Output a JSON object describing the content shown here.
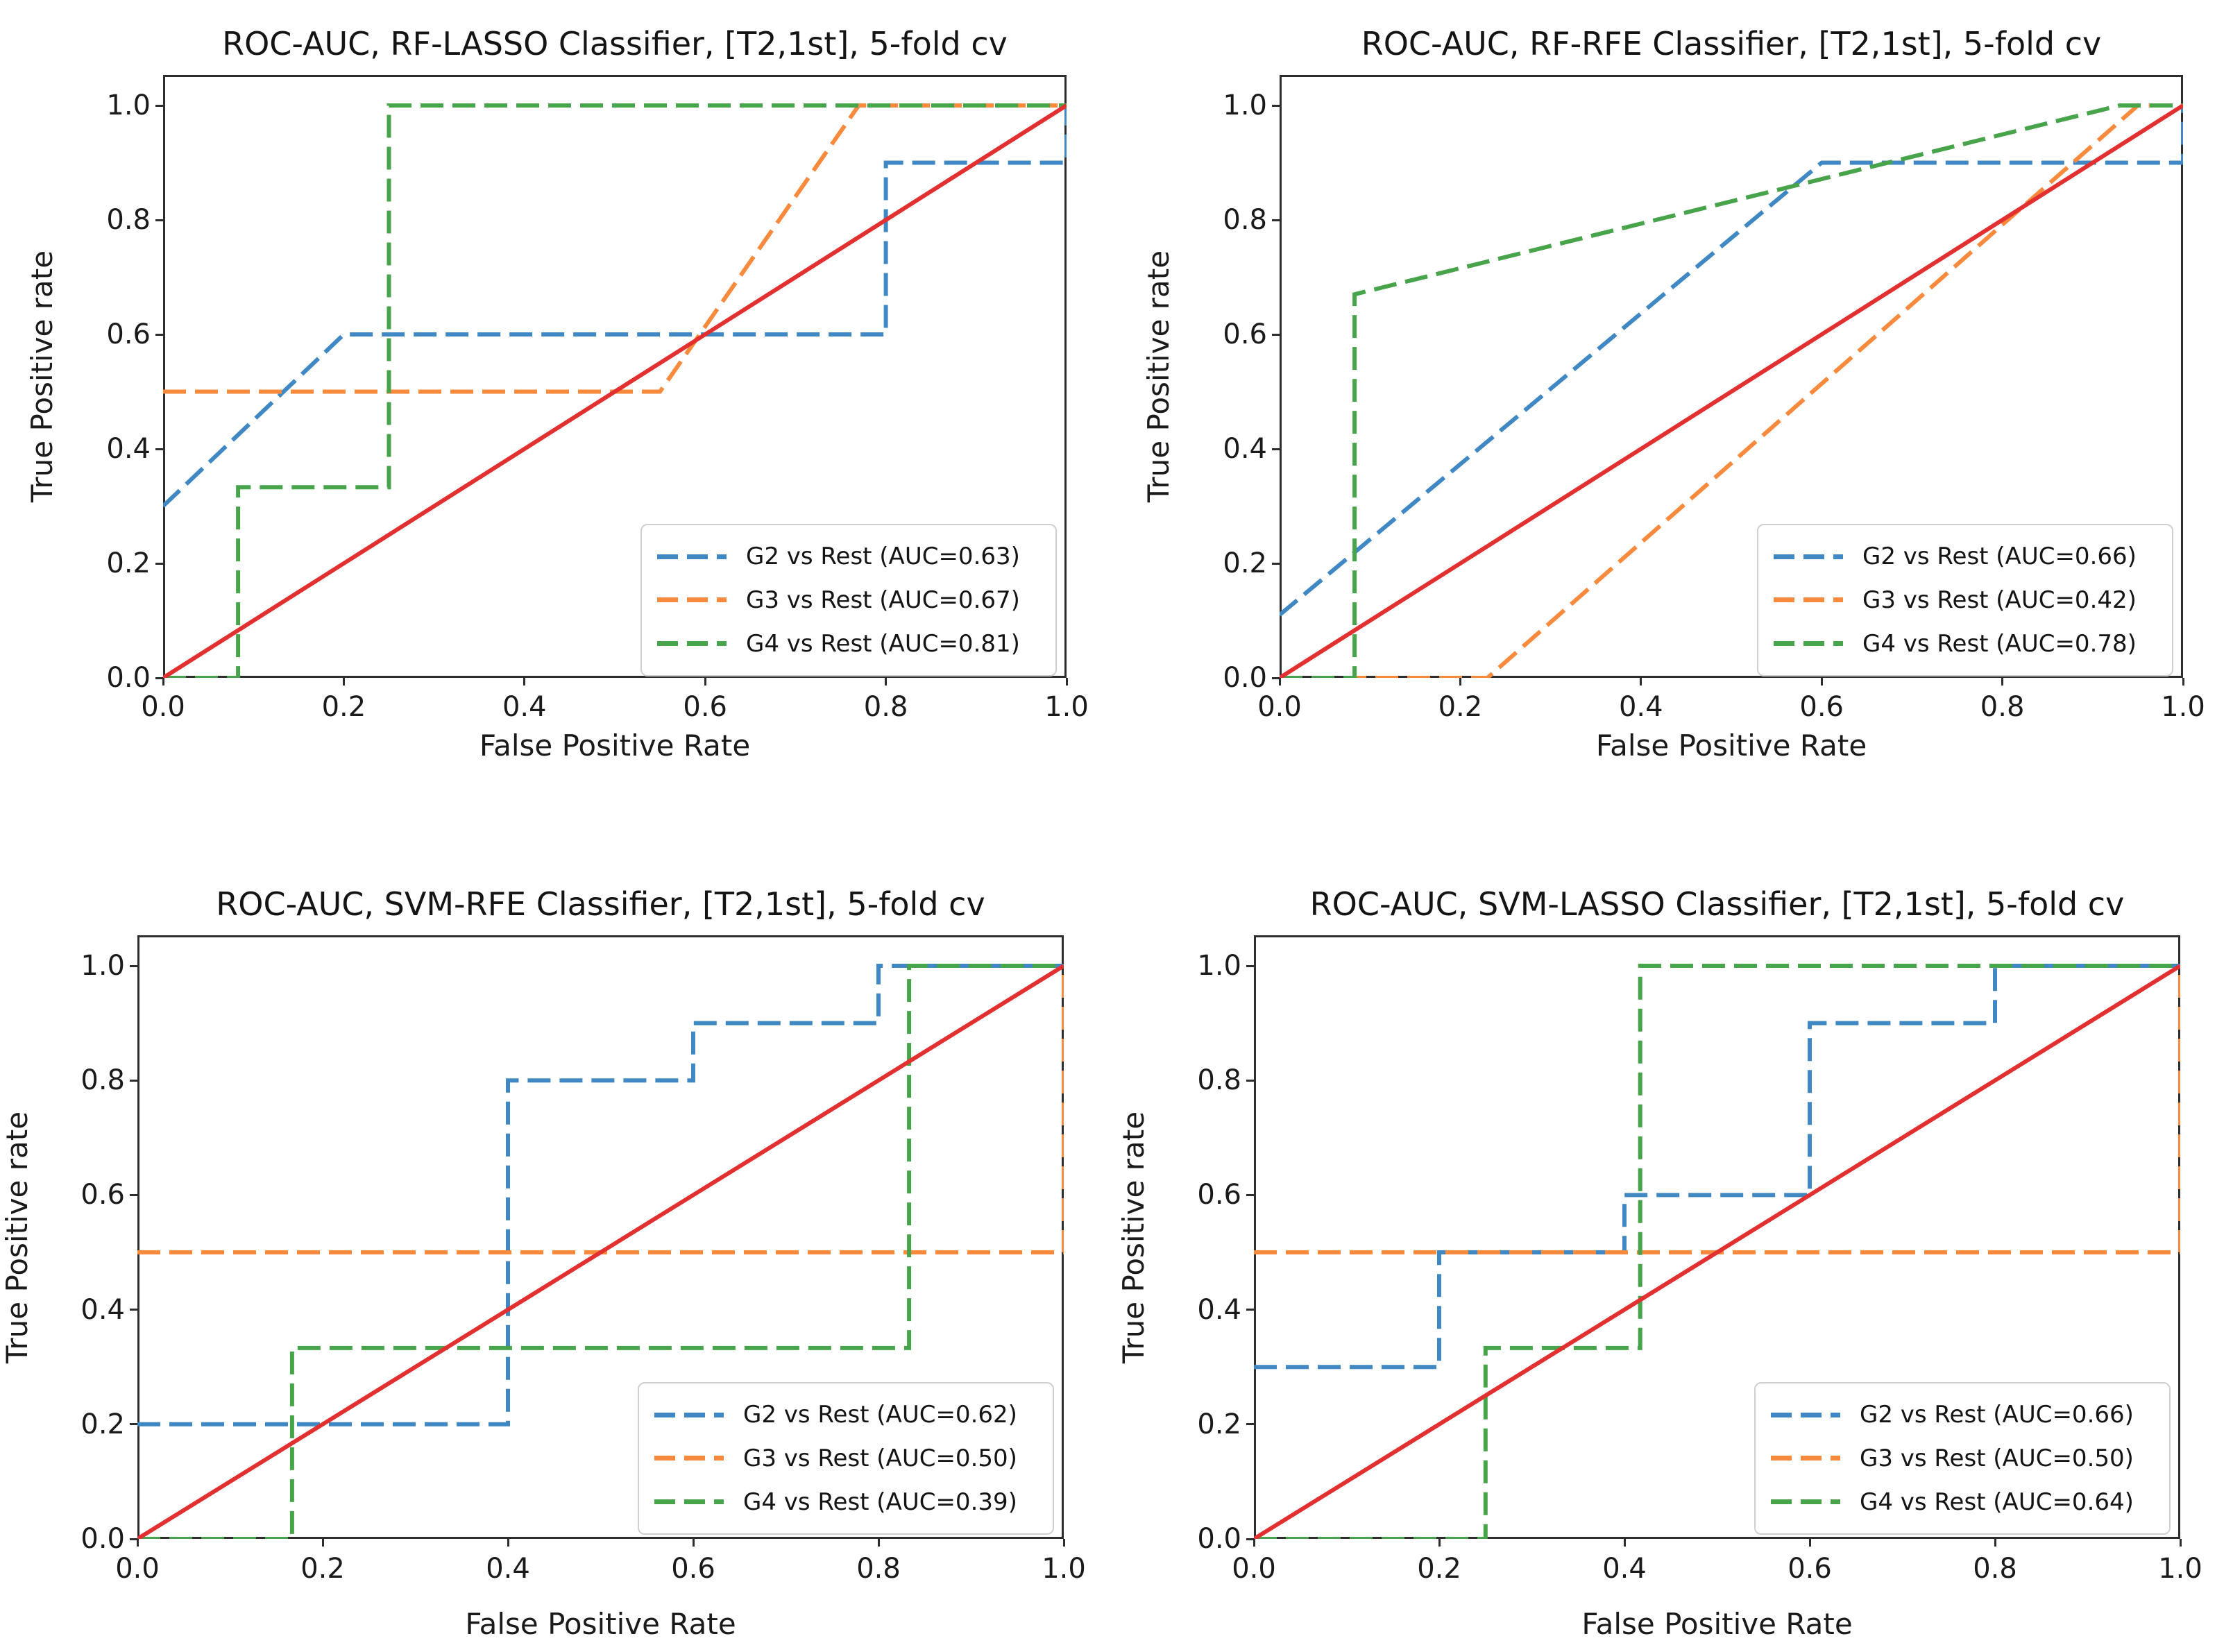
{
  "figure": {
    "xlabel": "False Positive Rate",
    "ylabel": "True Positive rate",
    "xticks": [
      "0.0",
      "0.2",
      "0.4",
      "0.6",
      "0.8",
      "1.0"
    ],
    "yticks": [
      "0.0",
      "0.2",
      "0.4",
      "0.6",
      "0.8",
      "1.0"
    ]
  },
  "colors": {
    "g2_blue": "#3f88c3",
    "g3_orange": "#f78a3d",
    "g4_green": "#47a44b",
    "chance_red": "#e22f2f"
  },
  "chart_data": [
    {
      "type": "line",
      "subtype": "roc-step",
      "title": "ROC-AUC, RF-LASSO Classifier, [T2,1st], 5-fold cv",
      "xlabel": "False Positive Rate",
      "ylabel": "True Positive rate",
      "xlim": [
        0,
        1
      ],
      "ylim": [
        0,
        1.05
      ],
      "grid": false,
      "legend_position": "lower right",
      "series": [
        {
          "label": "G2 vs Rest (AUC=0.63)",
          "auc": 0.63,
          "color": "#3f88c3",
          "dash": true,
          "points": [
            [
              0,
              0.3
            ],
            [
              0.2,
              0.6
            ],
            [
              0.8,
              0.6
            ],
            [
              0.8,
              0.9
            ],
            [
              1.0,
              0.9
            ],
            [
              1.0,
              1.0
            ]
          ]
        },
        {
          "label": "G3 vs Rest (AUC=0.67)",
          "auc": 0.67,
          "color": "#f78a3d",
          "dash": true,
          "points": [
            [
              0,
              0.5
            ],
            [
              0.55,
              0.5
            ],
            [
              0.77,
              1.0
            ],
            [
              1.0,
              1.0
            ]
          ]
        },
        {
          "label": "G4 vs Rest (AUC=0.81)",
          "auc": 0.81,
          "color": "#47a44b",
          "dash": true,
          "points": [
            [
              0,
              0
            ],
            [
              0.083,
              0
            ],
            [
              0.083,
              0.333
            ],
            [
              0.25,
              0.333
            ],
            [
              0.25,
              1.0
            ],
            [
              1.0,
              1.0
            ]
          ]
        },
        {
          "label": "chance-diagonal",
          "legend": false,
          "color": "#e22f2f",
          "dash": false,
          "points": [
            [
              0,
              0
            ],
            [
              1.0,
              1.0
            ]
          ]
        }
      ]
    },
    {
      "type": "line",
      "subtype": "roc-step",
      "title": "ROC-AUC, RF-RFE Classifier, [T2,1st], 5-fold cv",
      "xlabel": "False Positive Rate",
      "ylabel": "True Positive rate",
      "xlim": [
        0,
        1
      ],
      "ylim": [
        0,
        1.05
      ],
      "grid": false,
      "legend_position": "lower right",
      "series": [
        {
          "label": "G2 vs Rest (AUC=0.66)",
          "auc": 0.66,
          "color": "#3f88c3",
          "dash": true,
          "points": [
            [
              0,
              0.11
            ],
            [
              0.6,
              0.9
            ],
            [
              1.0,
              0.9
            ],
            [
              1.0,
              1.0
            ]
          ]
        },
        {
          "label": "G3 vs Rest (AUC=0.42)",
          "auc": 0.42,
          "color": "#f78a3d",
          "dash": true,
          "points": [
            [
              0,
              0
            ],
            [
              0.23,
              0
            ],
            [
              0.95,
              1.0
            ],
            [
              1.0,
              1.0
            ]
          ]
        },
        {
          "label": "G4 vs Rest (AUC=0.78)",
          "auc": 0.78,
          "color": "#47a44b",
          "dash": true,
          "points": [
            [
              0,
              0
            ],
            [
              0.083,
              0
            ],
            [
              0.083,
              0.67
            ],
            [
              0.93,
              1.0
            ],
            [
              1.0,
              1.0
            ]
          ]
        },
        {
          "label": "chance-diagonal",
          "legend": false,
          "color": "#e22f2f",
          "dash": false,
          "points": [
            [
              0,
              0
            ],
            [
              1.0,
              1.0
            ]
          ]
        }
      ]
    },
    {
      "type": "line",
      "subtype": "roc-step",
      "title": "ROC-AUC, SVM-RFE Classifier, [T2,1st], 5-fold cv",
      "xlabel": "False Positive Rate",
      "ylabel": "True Positive rate",
      "xlim": [
        0,
        1
      ],
      "ylim": [
        0,
        1.05
      ],
      "grid": false,
      "legend_position": "lower right",
      "series": [
        {
          "label": "G2 vs Rest (AUC=0.62)",
          "auc": 0.62,
          "color": "#3f88c3",
          "dash": true,
          "points": [
            [
              0,
              0.2
            ],
            [
              0.4,
              0.2
            ],
            [
              0.4,
              0.8
            ],
            [
              0.6,
              0.8
            ],
            [
              0.6,
              0.9
            ],
            [
              0.8,
              0.9
            ],
            [
              0.8,
              1.0
            ],
            [
              1.0,
              1.0
            ]
          ]
        },
        {
          "label": "G3 vs Rest (AUC=0.50)",
          "auc": 0.5,
          "color": "#f78a3d",
          "dash": true,
          "points": [
            [
              0,
              0.5
            ],
            [
              1.0,
              0.5
            ],
            [
              1.0,
              1.0
            ]
          ]
        },
        {
          "label": "G4 vs Rest (AUC=0.39)",
          "auc": 0.39,
          "color": "#47a44b",
          "dash": true,
          "points": [
            [
              0,
              0
            ],
            [
              0.167,
              0
            ],
            [
              0.167,
              0.333
            ],
            [
              0.833,
              0.333
            ],
            [
              0.833,
              1.0
            ],
            [
              1.0,
              1.0
            ]
          ]
        },
        {
          "label": "chance-diagonal",
          "legend": false,
          "color": "#e22f2f",
          "dash": false,
          "points": [
            [
              0,
              0
            ],
            [
              1.0,
              1.0
            ]
          ]
        }
      ]
    },
    {
      "type": "line",
      "subtype": "roc-step",
      "title": "ROC-AUC, SVM-LASSO Classifier, [T2,1st], 5-fold cv",
      "xlabel": "False Positive Rate",
      "ylabel": "True Positive rate",
      "xlim": [
        0,
        1
      ],
      "ylim": [
        0,
        1.05
      ],
      "grid": false,
      "legend_position": "lower right",
      "series": [
        {
          "label": "G2 vs Rest (AUC=0.66)",
          "auc": 0.66,
          "color": "#3f88c3",
          "dash": true,
          "points": [
            [
              0,
              0.3
            ],
            [
              0.2,
              0.3
            ],
            [
              0.2,
              0.5
            ],
            [
              0.4,
              0.5
            ],
            [
              0.4,
              0.6
            ],
            [
              0.6,
              0.6
            ],
            [
              0.6,
              0.9
            ],
            [
              0.8,
              0.9
            ],
            [
              0.8,
              1.0
            ],
            [
              1.0,
              1.0
            ]
          ]
        },
        {
          "label": "G3 vs Rest (AUC=0.50)",
          "auc": 0.5,
          "color": "#f78a3d",
          "dash": true,
          "points": [
            [
              0,
              0.5
            ],
            [
              1.0,
              0.5
            ],
            [
              1.0,
              1.0
            ]
          ]
        },
        {
          "label": "G4 vs Rest (AUC=0.64)",
          "auc": 0.64,
          "color": "#47a44b",
          "dash": true,
          "points": [
            [
              0,
              0
            ],
            [
              0.25,
              0
            ],
            [
              0.25,
              0.333
            ],
            [
              0.417,
              0.333
            ],
            [
              0.417,
              1.0
            ],
            [
              1.0,
              1.0
            ]
          ]
        },
        {
          "label": "chance-diagonal",
          "legend": false,
          "color": "#e22f2f",
          "dash": false,
          "points": [
            [
              0,
              0
            ],
            [
              1.0,
              1.0
            ]
          ]
        }
      ]
    }
  ]
}
